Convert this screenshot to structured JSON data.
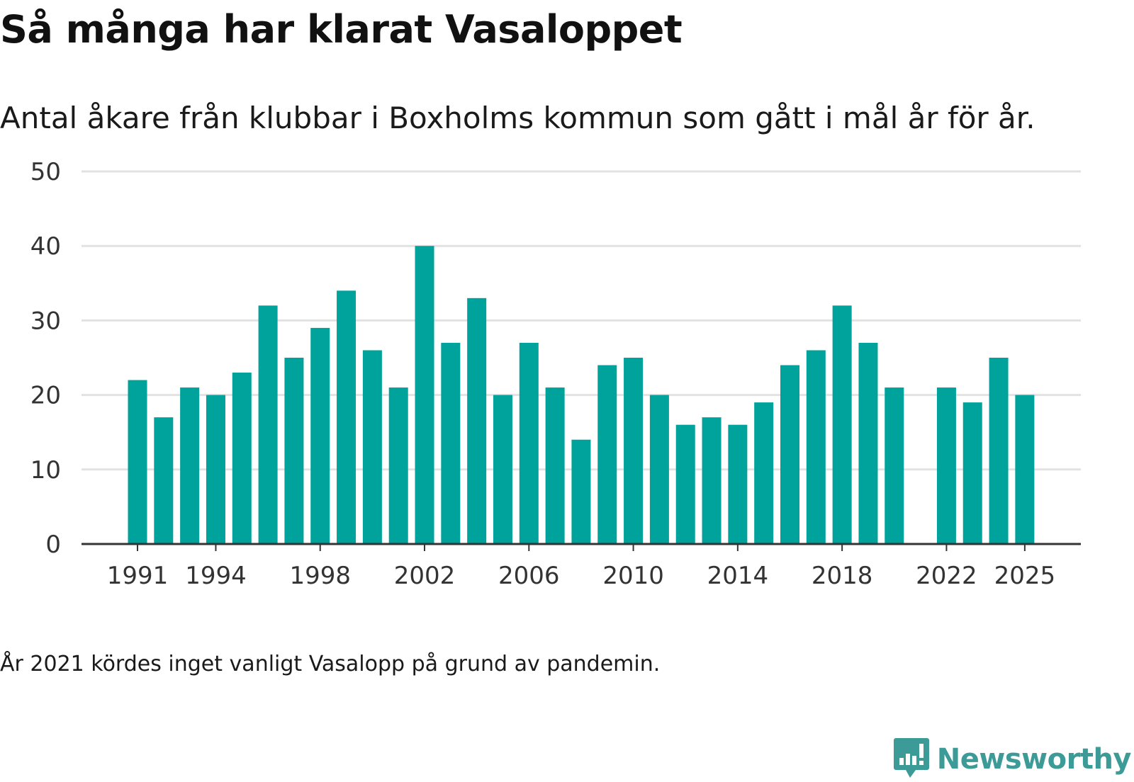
{
  "title": "Så många har klarat Vasaloppet",
  "subtitle": "Antal åkare från klubbar i Boxholms kommun som gått i mål år för år.",
  "note": "År 2021 kördes inget vanligt Vasalopp på grund av pandemin.",
  "brand": {
    "name": "Newsworthy",
    "color": "#3d9b97",
    "icon": "newsworthy-logo-icon"
  },
  "colors": {
    "bar": "#00a39b",
    "grid": "#e2e2e2",
    "axis": "#333333"
  },
  "chart_data": {
    "type": "bar",
    "title": "Så många har klarat Vasaloppet",
    "xlabel": "",
    "ylabel": "",
    "ylim": [
      0,
      50
    ],
    "yticks": [
      0,
      10,
      20,
      30,
      40,
      50
    ],
    "xticks": [
      1991,
      1994,
      1998,
      2002,
      2006,
      2010,
      2014,
      2018,
      2022,
      2025
    ],
    "categories": [
      1991,
      1992,
      1993,
      1994,
      1995,
      1996,
      1997,
      1998,
      1999,
      2000,
      2001,
      2002,
      2003,
      2004,
      2005,
      2006,
      2007,
      2008,
      2009,
      2010,
      2011,
      2012,
      2013,
      2014,
      2015,
      2016,
      2017,
      2018,
      2019,
      2020,
      2021,
      2022,
      2023,
      2024,
      2025
    ],
    "values": [
      22,
      17,
      21,
      20,
      23,
      32,
      25,
      29,
      34,
      26,
      21,
      40,
      27,
      33,
      20,
      27,
      21,
      14,
      24,
      25,
      20,
      16,
      17,
      16,
      19,
      24,
      26,
      32,
      27,
      21,
      null,
      21,
      19,
      25,
      20
    ],
    "grid": true,
    "legend": "none"
  }
}
